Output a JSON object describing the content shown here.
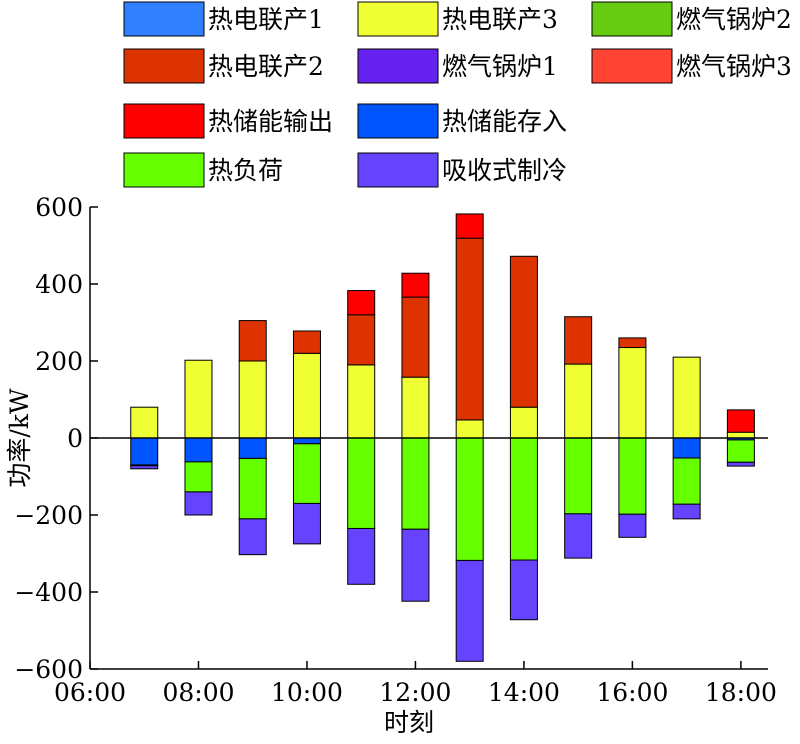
{
  "chart_data": {
    "type": "bar",
    "stacked": true,
    "xlabel": "时刻",
    "ylabel": "功率/kW",
    "ylim": [
      -600,
      600
    ],
    "yticks": [
      -600,
      -400,
      -200,
      0,
      200,
      400,
      600
    ],
    "ytick_labels": [
      "−600",
      "−400",
      "−200",
      "0",
      "200",
      "400",
      "600"
    ],
    "xlim": [
      6,
      18.5
    ],
    "xticks": [
      6,
      8,
      10,
      12,
      14,
      16,
      18
    ],
    "xtick_labels": [
      "06:00",
      "08:00",
      "10:00",
      "12:00",
      "14:00",
      "16:00",
      "18:00"
    ],
    "categories": [
      "07:00",
      "08:00",
      "09:00",
      "10:00",
      "11:00",
      "12:00",
      "13:00",
      "14:00",
      "15:00",
      "16:00",
      "17:00",
      "18:00"
    ],
    "x": [
      7,
      8,
      9,
      10,
      11,
      12,
      13,
      14,
      15,
      16,
      17,
      18
    ],
    "zero_line": true,
    "legend_position": "top",
    "series": [
      {
        "name": "热电联产1",
        "color": "#2f7fff",
        "values": [
          0,
          0,
          0,
          0,
          0,
          0,
          0,
          0,
          0,
          0,
          0,
          0
        ]
      },
      {
        "name": "热电联产3",
        "color": "#eeff33",
        "values": [
          80,
          202,
          200,
          220,
          190,
          158,
          47,
          80,
          192,
          235,
          210,
          15
        ]
      },
      {
        "name": "燃气锅炉2",
        "color": "#66cc11",
        "values": [
          0,
          0,
          0,
          0,
          0,
          0,
          0,
          0,
          0,
          0,
          0,
          0
        ]
      },
      {
        "name": "热电联产2",
        "color": "#dd3300",
        "values": [
          0,
          0,
          105,
          58,
          130,
          208,
          472,
          392,
          123,
          25,
          0,
          0
        ]
      },
      {
        "name": "燃气锅炉1",
        "color": "#6622ee",
        "values": [
          0,
          0,
          0,
          0,
          0,
          0,
          0,
          0,
          0,
          0,
          0,
          0
        ]
      },
      {
        "name": "燃气锅炉3",
        "color": "#ff4433",
        "values": [
          0,
          0,
          0,
          0,
          0,
          0,
          0,
          0,
          0,
          0,
          0,
          0
        ]
      },
      {
        "name": "热储能输出",
        "color": "#ff0000",
        "values": [
          0,
          0,
          0,
          0,
          63,
          62,
          63,
          0,
          0,
          0,
          0,
          58
        ]
      },
      {
        "name": "热储能存入",
        "color": "#0055ff",
        "values": [
          -70,
          -62,
          -53,
          -15,
          0,
          0,
          0,
          0,
          0,
          0,
          -52,
          -5
        ]
      },
      {
        "name": "热负荷",
        "color": "#66ff00",
        "values": [
          -2,
          -78,
          -157,
          -155,
          -235,
          -237,
          -318,
          -317,
          -197,
          -198,
          -120,
          -58
        ]
      },
      {
        "name": "吸收式制冷",
        "color": "#6644ff",
        "values": [
          -8,
          -60,
          -93,
          -105,
          -145,
          -187,
          -262,
          -155,
          -115,
          -60,
          -38,
          -10
        ]
      }
    ]
  }
}
